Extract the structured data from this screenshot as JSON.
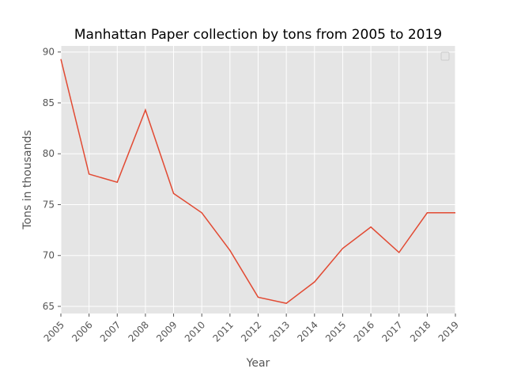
{
  "chart_data": {
    "type": "line",
    "title": "Manhattan Paper collection by tons from 2005 to 2019",
    "xlabel": "Year",
    "ylabel": "Tons in thousands",
    "x": [
      "2005",
      "2006",
      "2007",
      "2008",
      "2009",
      "2010",
      "2011",
      "2012",
      "2013",
      "2014",
      "2015",
      "2016",
      "2017",
      "2018",
      "2019"
    ],
    "series": [
      {
        "values": [
          89.3,
          78.0,
          77.2,
          84.3,
          76.1,
          74.2,
          70.5,
          65.9,
          65.3,
          67.4,
          70.7,
          72.8,
          70.3,
          74.2,
          74.2
        ]
      }
    ],
    "xlim": [
      2005,
      2019
    ],
    "ylim": [
      64.3,
      90.6
    ],
    "yticks": [
      65,
      70,
      75,
      80,
      85,
      90
    ],
    "grid": true,
    "legend": "top-right (empty)",
    "background": "#e5e5e5",
    "line_color": "#e24a33"
  }
}
